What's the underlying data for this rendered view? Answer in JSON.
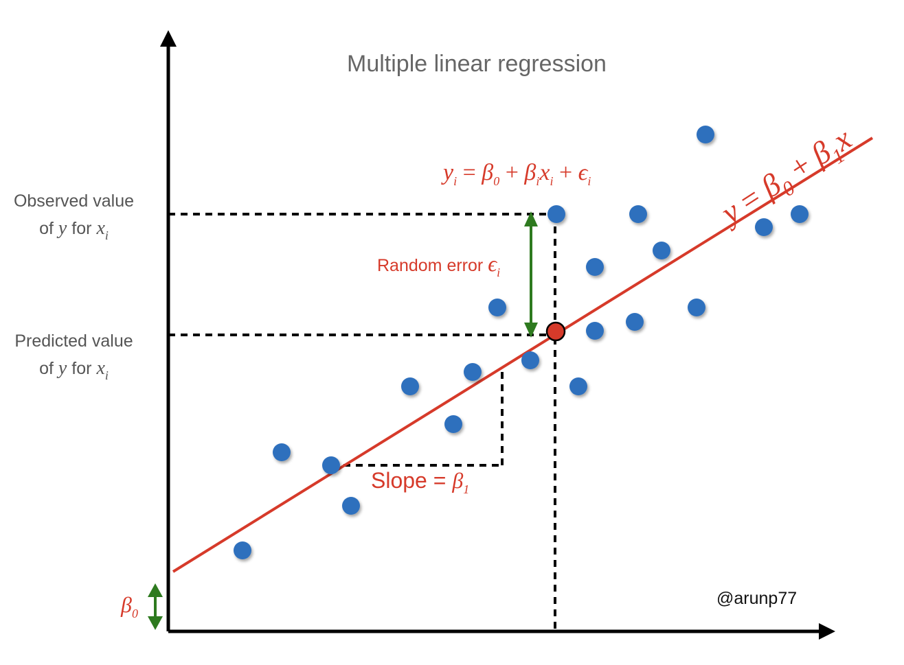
{
  "title": "Multiple linear regression",
  "credit": "@arunp77",
  "observed_label": {
    "line1": "Observed value",
    "line2_prefix": "of",
    "y_var": "y",
    "for_word": "for",
    "x_var": "x",
    "x_sub": "i"
  },
  "predicted_label": {
    "line1": "Predicted value",
    "line2_prefix": "of",
    "y_var": "y",
    "for_word": "for",
    "x_var": "x",
    "x_sub": "i"
  },
  "random_error": {
    "text": "Random error",
    "symbol": "ϵ",
    "sub": "i"
  },
  "slope": {
    "text": "Slope =",
    "symbol": "β",
    "sub": "1"
  },
  "intercept": {
    "symbol": "β",
    "sub": "0"
  },
  "model_equation": {
    "y": "y",
    "y_sub": "i",
    "eq": " = ",
    "b0": "β",
    "b0_sub": "0",
    "plus1": " + ",
    "bi": "β",
    "bi_sub": "i",
    "x": "x",
    "x_sub": "i",
    "plus2": " + ",
    "eps": "ϵ",
    "eps_sub": "i"
  },
  "line_equation": {
    "y": "y",
    "eq": " = ",
    "b0": "β",
    "b0_sub": "0",
    "plus": " + ",
    "b1": "β",
    "b1_sub": "1",
    "x": "x"
  },
  "colors": {
    "axis": "#000000",
    "regression_line": "#d63a2a",
    "points": "#2f6fbd",
    "error_arrow": "#2e7a1f",
    "predicted_point": "#d63a2a",
    "text_gray": "#555555",
    "text_red": "#d63a2a"
  },
  "icons": {
    "observed_point": "blue-dot",
    "predicted_point": "red-dot-outlined",
    "error_arrow": "green-double-arrow",
    "intercept_arrow": "green-double-arrow"
  }
}
